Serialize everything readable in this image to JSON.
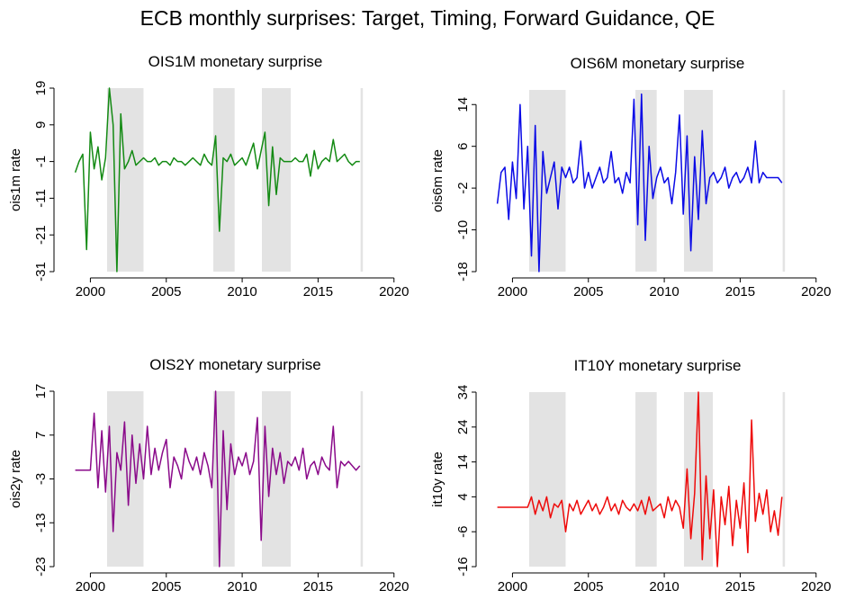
{
  "title": "ECB monthly surprises: Target, Timing, Forward Guidance, QE",
  "chart_data": [
    {
      "type": "line",
      "title": "OIS1M monetary surprise",
      "ylabel": "ois1m rate",
      "color": "#138a13",
      "xlim": [
        1997.9,
        2021.2
      ],
      "xticks": [
        2000,
        2005,
        2010,
        2015,
        2020
      ],
      "ylim": [
        -31,
        19
      ],
      "yticks": [
        -31,
        -21,
        -11,
        -1,
        9,
        19
      ],
      "shaded": [
        [
          2001.1,
          2003.5
        ],
        [
          2008.1,
          2009.5
        ],
        [
          2011.3,
          2013.2
        ],
        [
          2017.8,
          2017.95
        ]
      ],
      "x": [
        1999,
        1999.25,
        1999.5,
        1999.75,
        2000,
        2000.25,
        2000.5,
        2000.75,
        2001,
        2001.25,
        2001.5,
        2001.75,
        2002,
        2002.25,
        2002.5,
        2002.75,
        2003,
        2003.25,
        2003.5,
        2003.75,
        2004,
        2004.25,
        2004.5,
        2004.75,
        2005,
        2005.25,
        2005.5,
        2005.75,
        2006,
        2006.25,
        2006.5,
        2006.75,
        2007,
        2007.25,
        2007.5,
        2007.75,
        2008,
        2008.25,
        2008.5,
        2008.75,
        2009,
        2009.25,
        2009.5,
        2009.75,
        2010,
        2010.25,
        2010.5,
        2010.75,
        2011,
        2011.25,
        2011.5,
        2011.75,
        2012,
        2012.25,
        2012.5,
        2012.75,
        2013,
        2013.25,
        2013.5,
        2013.75,
        2014,
        2014.25,
        2014.5,
        2014.75,
        2015,
        2015.25,
        2015.5,
        2015.75,
        2016,
        2016.25,
        2016.5,
        2016.75,
        2017,
        2017.25,
        2017.5,
        2017.75
      ],
      "values": [
        -4,
        -1,
        1,
        -25,
        7,
        -3,
        3,
        -6,
        0,
        19,
        9,
        -31,
        12,
        -3,
        -1,
        2,
        -2,
        -1,
        0,
        -1,
        -1,
        0,
        -2,
        -1,
        -1,
        -2,
        0,
        -1,
        -1,
        -2,
        -1,
        0,
        -1,
        -2,
        1,
        -1,
        -2,
        6,
        -20,
        0,
        -1,
        1,
        -2,
        -1,
        0,
        -2,
        1,
        4,
        -3,
        2,
        7,
        -13,
        3,
        -10,
        0,
        -1,
        -1,
        -1,
        0,
        -1,
        -1,
        1,
        -5,
        2,
        -3,
        -1,
        0,
        -1,
        5,
        -1,
        0,
        1,
        -1,
        -2,
        -1,
        -1
      ]
    },
    {
      "type": "line",
      "title": "OIS6M monetary surprise",
      "ylabel": "ois6m rate",
      "color": "#0a0ae6",
      "xlim": [
        1997.9,
        2021.2
      ],
      "xticks": [
        2000,
        2005,
        2010,
        2015,
        2020
      ],
      "ylim": [
        -18,
        16.8
      ],
      "yticks": [
        -18,
        -10,
        -2,
        6,
        14
      ],
      "shaded": [
        [
          2001.1,
          2003.5
        ],
        [
          2008.1,
          2009.5
        ],
        [
          2011.3,
          2013.2
        ],
        [
          2017.8,
          2017.95
        ]
      ],
      "x": [
        1999,
        1999.25,
        1999.5,
        1999.75,
        2000,
        2000.25,
        2000.5,
        2000.75,
        2001,
        2001.25,
        2001.5,
        2001.75,
        2002,
        2002.25,
        2002.5,
        2002.75,
        2003,
        2003.25,
        2003.5,
        2003.75,
        2004,
        2004.25,
        2004.5,
        2004.75,
        2005,
        2005.25,
        2005.5,
        2005.75,
        2006,
        2006.25,
        2006.5,
        2006.75,
        2007,
        2007.25,
        2007.5,
        2007.75,
        2008,
        2008.25,
        2008.5,
        2008.75,
        2009,
        2009.25,
        2009.5,
        2009.75,
        2010,
        2010.25,
        2010.5,
        2010.75,
        2011,
        2011.25,
        2011.5,
        2011.75,
        2012,
        2012.25,
        2012.5,
        2012.75,
        2013,
        2013.25,
        2013.5,
        2013.75,
        2014,
        2014.25,
        2014.5,
        2014.75,
        2015,
        2015.25,
        2015.5,
        2015.75,
        2016,
        2016.25,
        2016.5,
        2016.75,
        2017,
        2017.25,
        2017.5,
        2017.75
      ],
      "values": [
        -5,
        1,
        2,
        -8,
        3,
        -4,
        14,
        -6,
        6,
        -15,
        10,
        -18,
        5,
        -3,
        0,
        3,
        -6,
        2,
        0,
        2,
        -1,
        0,
        7,
        -2,
        1,
        -2,
        0,
        2,
        -1,
        0,
        5,
        -1,
        0,
        -3,
        1,
        -1,
        15,
        -9,
        16,
        -12,
        6,
        -4,
        0,
        2,
        -1,
        0,
        -5,
        1,
        12,
        -7,
        8,
        -14,
        4,
        -8,
        9,
        -5,
        0,
        1,
        -1,
        0,
        2,
        -2,
        0,
        1,
        -1,
        0,
        2,
        -1,
        7,
        -1,
        1,
        0,
        0,
        0,
        0,
        -1
      ]
    },
    {
      "type": "line",
      "title": "OIS2Y monetary surprise",
      "ylabel": "ois2y rate",
      "color": "#8a0a8a",
      "xlim": [
        1997.9,
        2021.2
      ],
      "xticks": [
        2000,
        2005,
        2010,
        2015,
        2020
      ],
      "ylim": [
        -23,
        17
      ],
      "yticks": [
        -23,
        -13,
        -3,
        7,
        17
      ],
      "shaded": [
        [
          2001.1,
          2003.5
        ],
        [
          2008.1,
          2009.5
        ],
        [
          2011.3,
          2013.2
        ],
        [
          2017.8,
          2017.95
        ]
      ],
      "x": [
        1999,
        1999.25,
        1999.5,
        1999.75,
        2000,
        2000.25,
        2000.5,
        2000.75,
        2001,
        2001.25,
        2001.5,
        2001.75,
        2002,
        2002.25,
        2002.5,
        2002.75,
        2003,
        2003.25,
        2003.5,
        2003.75,
        2004,
        2004.25,
        2004.5,
        2004.75,
        2005,
        2005.25,
        2005.5,
        2005.75,
        2006,
        2006.25,
        2006.5,
        2006.75,
        2007,
        2007.25,
        2007.5,
        2007.75,
        2008,
        2008.25,
        2008.5,
        2008.75,
        2009,
        2009.25,
        2009.5,
        2009.75,
        2010,
        2010.25,
        2010.5,
        2010.75,
        2011,
        2011.25,
        2011.5,
        2011.75,
        2012,
        2012.25,
        2012.5,
        2012.75,
        2013,
        2013.25,
        2013.5,
        2013.75,
        2014,
        2014.25,
        2014.5,
        2014.75,
        2015,
        2015.25,
        2015.5,
        2015.75,
        2016,
        2016.25,
        2016.5,
        2016.75,
        2017,
        2017.25,
        2017.5,
        2017.75
      ],
      "values": [
        -1,
        -1,
        -1,
        -1,
        -1,
        12,
        -5,
        8,
        -6,
        9,
        -15,
        3,
        -1,
        10,
        -9,
        7,
        -4,
        5,
        -3,
        9,
        -2,
        4,
        -1,
        3,
        6,
        -5,
        2,
        0,
        -3,
        4,
        1,
        -1,
        2,
        -2,
        3,
        0,
        -5,
        17,
        -23,
        8,
        -10,
        5,
        -2,
        2,
        0,
        3,
        -2,
        1,
        11,
        -17,
        9,
        -7,
        4,
        -2,
        3,
        -4,
        1,
        0,
        2,
        -1,
        4,
        -3,
        0,
        1,
        -2,
        2,
        0,
        -1,
        9,
        -5,
        1,
        0,
        1,
        0,
        -1,
        0
      ]
    },
    {
      "type": "line",
      "title": "IT10Y monetary surprise",
      "ylabel": "it10y rate",
      "color": "#ee0a0a",
      "xlim": [
        1997.9,
        2021.2
      ],
      "xticks": [
        2000,
        2005,
        2010,
        2015,
        2020
      ],
      "ylim": [
        -16,
        34
      ],
      "yticks": [
        -16,
        -6,
        4,
        14,
        24,
        34
      ],
      "shaded": [
        [
          2001.1,
          2003.5
        ],
        [
          2008.1,
          2009.5
        ],
        [
          2011.3,
          2013.2
        ],
        [
          2017.8,
          2017.95
        ]
      ],
      "x": [
        1999,
        1999.25,
        1999.5,
        1999.75,
        2000,
        2000.25,
        2000.5,
        2000.75,
        2001,
        2001.25,
        2001.5,
        2001.75,
        2002,
        2002.25,
        2002.5,
        2002.75,
        2003,
        2003.25,
        2003.5,
        2003.75,
        2004,
        2004.25,
        2004.5,
        2004.75,
        2005,
        2005.25,
        2005.5,
        2005.75,
        2006,
        2006.25,
        2006.5,
        2006.75,
        2007,
        2007.25,
        2007.5,
        2007.75,
        2008,
        2008.25,
        2008.5,
        2008.75,
        2009,
        2009.25,
        2009.5,
        2009.75,
        2010,
        2010.25,
        2010.5,
        2010.75,
        2011,
        2011.25,
        2011.5,
        2011.75,
        2012,
        2012.25,
        2012.5,
        2012.75,
        2013,
        2013.25,
        2013.5,
        2013.75,
        2014,
        2014.25,
        2014.5,
        2014.75,
        2015,
        2015.25,
        2015.5,
        2015.75,
        2016,
        2016.25,
        2016.5,
        2016.75,
        2017,
        2017.25,
        2017.5,
        2017.75
      ],
      "values": [
        1,
        1,
        1,
        1,
        1,
        1,
        1,
        1,
        1,
        4,
        -1,
        3,
        0,
        4,
        -2,
        2,
        1,
        3,
        -6,
        2,
        0,
        3,
        -1,
        1,
        3,
        0,
        2,
        -1,
        1,
        4,
        0,
        2,
        -1,
        3,
        1,
        0,
        2,
        0,
        3,
        -1,
        4,
        0,
        1,
        2,
        -2,
        4,
        0,
        3,
        1,
        -5,
        12,
        -8,
        5,
        34,
        -14,
        10,
        -8,
        6,
        -16,
        4,
        -4,
        7,
        -10,
        3,
        -5,
        8,
        -12,
        26,
        -3,
        5,
        -1,
        6,
        -6,
        0,
        -7,
        4
      ]
    }
  ]
}
